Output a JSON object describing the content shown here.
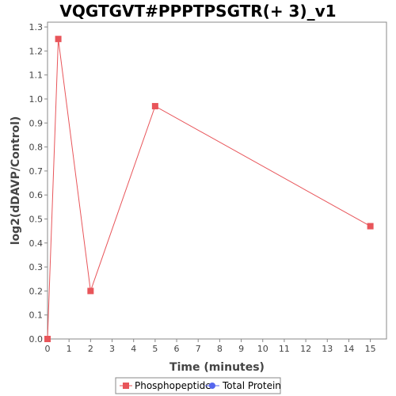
{
  "chart_data": {
    "type": "line",
    "title": "VQGTGVT#PPPTPSGTR(+ 3)_v1",
    "xlabel": "Time (minutes)",
    "ylabel": "log2(dDAVP/Control)",
    "xlim": [
      0,
      15.75
    ],
    "ylim": [
      0,
      1.32
    ],
    "x_ticks": [
      0,
      1,
      2,
      3,
      4,
      5,
      6,
      7,
      8,
      9,
      10,
      11,
      12,
      13,
      14,
      15
    ],
    "y_ticks": [
      "0.0",
      "0.1",
      "0.2",
      "0.3",
      "0.4",
      "0.5",
      "0.6",
      "0.7",
      "0.8",
      "0.9",
      "1.0",
      "1.1",
      "1.2",
      "1.3"
    ],
    "grid": false,
    "legend_position": "bottom-center",
    "series": [
      {
        "name": "Phosphopeptide",
        "color": "#e8555a",
        "marker": "square",
        "x": [
          0,
          0.5,
          2,
          5,
          15
        ],
        "y": [
          0.0,
          1.25,
          0.2,
          0.97,
          0.47
        ]
      },
      {
        "name": "Total Protein",
        "color": "#5566ee",
        "marker": "circle",
        "x": [],
        "y": []
      }
    ]
  }
}
